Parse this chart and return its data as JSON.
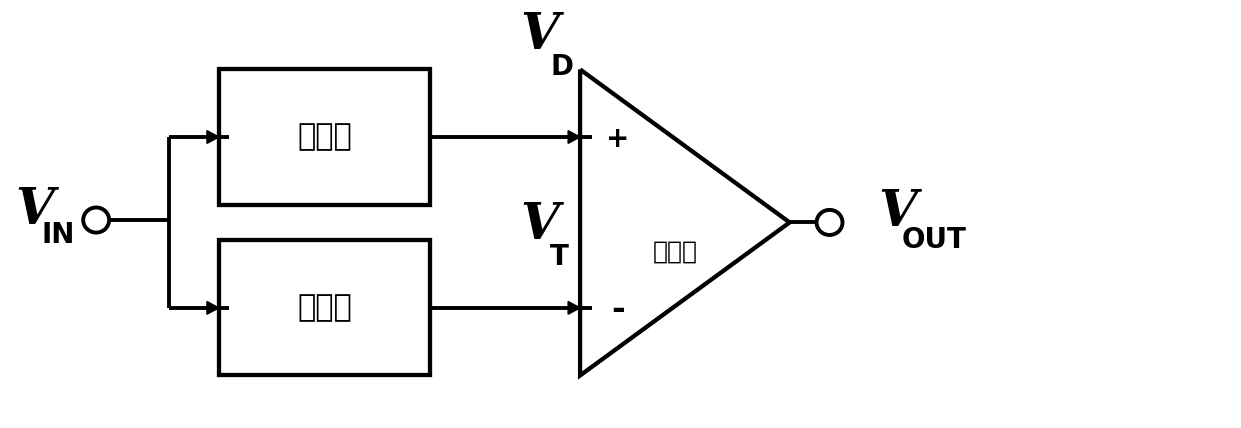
{
  "fig_width": 12.41,
  "fig_height": 4.28,
  "dpi": 100,
  "bg_color": "#ffffff",
  "line_color": "#000000",
  "lw": 2.8,
  "box1_label": "延时器",
  "box2_label": "衰减器",
  "tri_label": "比较器",
  "label_plus": "+",
  "label_minus": "-",
  "label_VIN_main": "V",
  "label_VIN_sub": "IN",
  "label_VOUT_main": "V",
  "label_VOUT_sub": "OUT",
  "label_VD_main": "V",
  "label_VD_sub": "D",
  "label_VT_main": "V",
  "label_VT_sub": "T"
}
